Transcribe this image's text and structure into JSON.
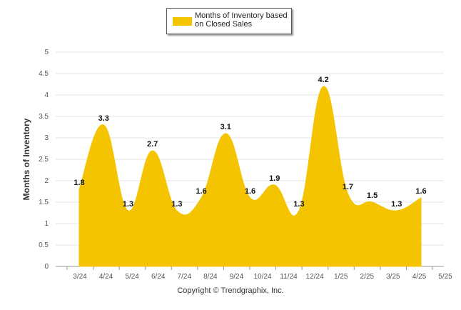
{
  "chart_data": {
    "type": "area",
    "title": "",
    "legend": {
      "label": "Months of Inventory based on Closed Sales",
      "position": "top-center"
    },
    "categories": [
      "3/24",
      "4/24",
      "5/24",
      "6/24",
      "7/24",
      "8/24",
      "9/24",
      "10/24",
      "11/24",
      "12/24",
      "1/25",
      "2/25",
      "3/25",
      "4/25",
      "5/25"
    ],
    "series": [
      {
        "name": "Months of Inventory based on Closed Sales",
        "values": [
          1.8,
          3.3,
          1.3,
          2.7,
          1.3,
          1.6,
          3.1,
          1.6,
          1.9,
          1.3,
          4.2,
          1.7,
          1.5,
          1.3,
          1.6
        ],
        "color": "#F5C400"
      }
    ],
    "data_labels": [
      "1.8",
      "3.3",
      "1.3",
      "2.7",
      "1.3",
      "1.6",
      "3.1",
      "1.6",
      "1.9",
      "1.3",
      "4.2",
      "1.7",
      "1.5",
      "1.3",
      "1.6"
    ],
    "xlabel": "",
    "ylabel": "Months of Inventory",
    "ylim": [
      0,
      5
    ],
    "yticks": [
      "0",
      "0.5",
      "1",
      "1.5",
      "2",
      "2.5",
      "3",
      "3.5",
      "4",
      "4.5",
      "5"
    ],
    "grid": true
  },
  "footer": {
    "credit": "Copyright © Trendgraphix, Inc."
  }
}
